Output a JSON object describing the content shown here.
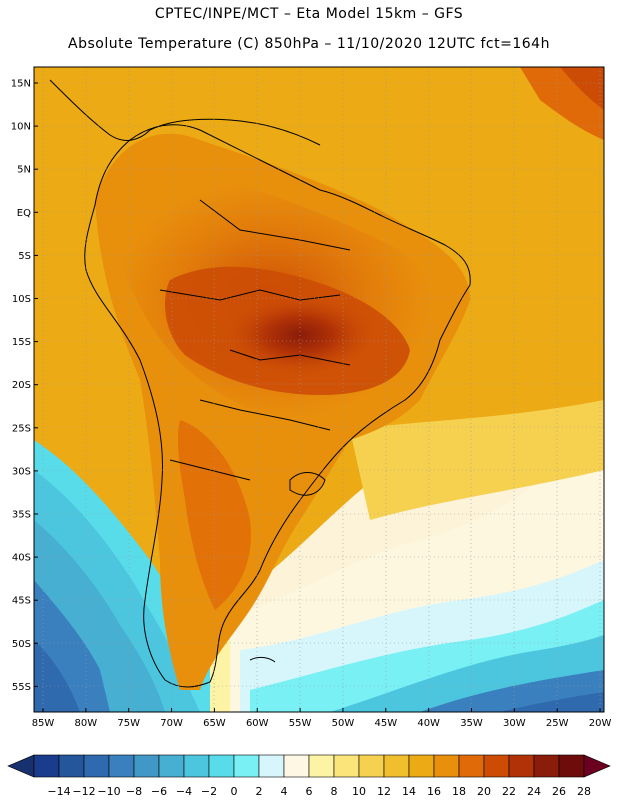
{
  "header": {
    "line1": "CPTEC/INPE/MCT –  Eta Model 15km – GFS",
    "line2": "Absolute Temperature (C) 850hPa – 11/10/2020 12UTC fct=164h"
  },
  "map": {
    "lat_labels": [
      "15N",
      "10N",
      "5N",
      "EQ",
      "5S",
      "10S",
      "15S",
      "20S",
      "25S",
      "30S",
      "35S",
      "40S",
      "45S",
      "50S",
      "55S"
    ],
    "lon_labels": [
      "85W",
      "80W",
      "75W",
      "70W",
      "65W",
      "60W",
      "55W",
      "50W",
      "45W",
      "40W",
      "35W",
      "30W",
      "25W",
      "20W"
    ]
  },
  "colorbar": {
    "labels": [
      "-14",
      "-12",
      "-10",
      "-8",
      "-6",
      "-4",
      "-2",
      "0",
      "2",
      "4",
      "6",
      "8",
      "10",
      "12",
      "14",
      "16",
      "18",
      "20",
      "22",
      "24",
      "26",
      "28"
    ],
    "colors": [
      "#1a3c8c",
      "#24569c",
      "#2f6aae",
      "#3a80be",
      "#4197c6",
      "#46afd2",
      "#4cc6df",
      "#58dcea",
      "#78f0f4",
      "#d6f6fb",
      "#fdf7e4",
      "#fdf3a4",
      "#fbe47a",
      "#f6d150",
      "#f1be2e",
      "#ecaa14",
      "#e8900c",
      "#e06a08",
      "#cc4c06",
      "#b13206",
      "#8a1c0a",
      "#6e0c0c"
    ],
    "arrow_low": "#17306e",
    "arrow_high": "#6b0020"
  }
}
